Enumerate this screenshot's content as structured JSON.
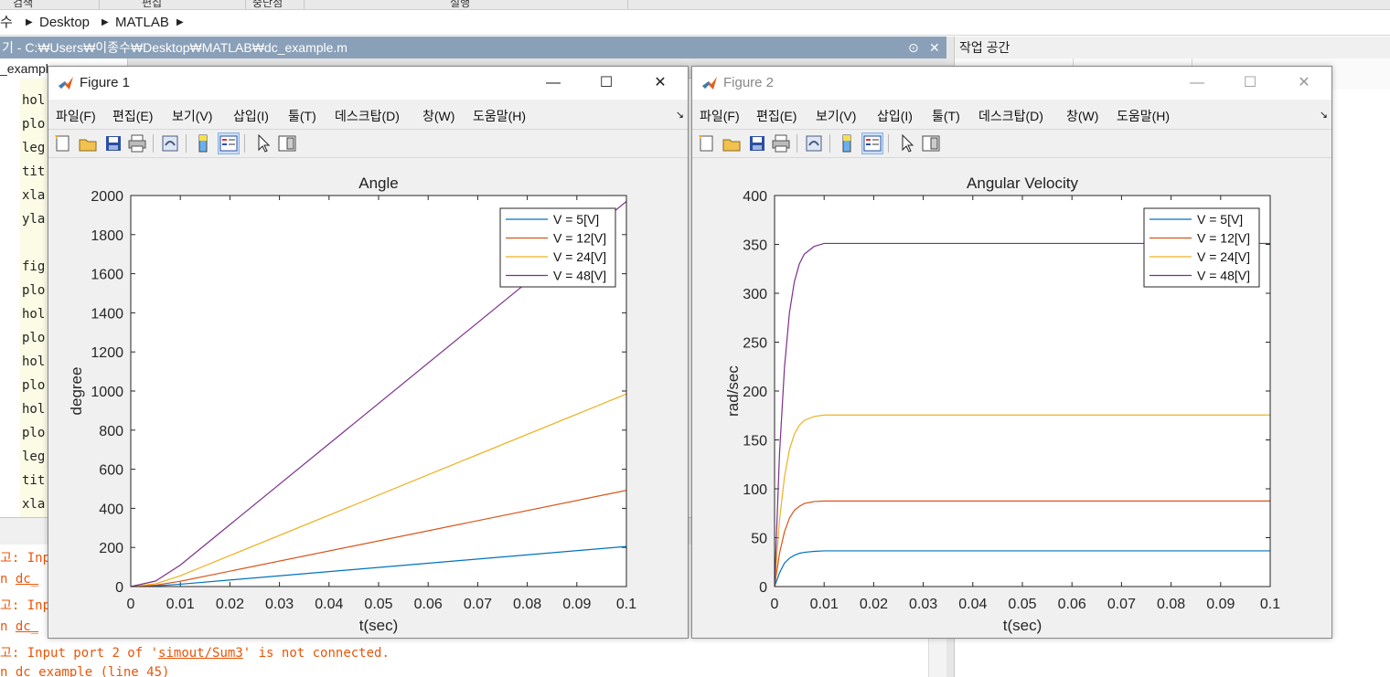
{
  "ribbon": {
    "items": [
      "검색",
      "편집",
      "중단점",
      "실행"
    ]
  },
  "address": {
    "segments": [
      "수",
      "Desktop",
      "MATLAB"
    ]
  },
  "editor": {
    "title": "기 - C:₩Users₩이종수₩Desktop₩MATLAB₩dc_example.m",
    "tab": "_exampl",
    "lines": [
      "hol",
      "plo",
      "leg",
      "tit",
      "xla",
      "yla",
      "",
      "fig",
      "plo",
      "hol",
      "plo",
      "hol",
      "plo",
      "hol",
      "plo",
      "leg",
      "tit",
      "xla"
    ]
  },
  "command": {
    "lines": [
      {
        "pre": "고: Inp",
        "link": "",
        "post": ""
      },
      {
        "pre": "n ",
        "link": "dc_",
        "post": ""
      },
      {
        "pre": "고: Inp",
        "link": "",
        "post": ""
      },
      {
        "pre": "n ",
        "link": "dc_",
        "post": ""
      },
      {
        "pre": "고: Input port 2 of '",
        "link": "simout/Sum3",
        "post": "' is not connected."
      },
      {
        "pre": "n ",
        "link": "dc_example",
        "post": " (line 45)"
      }
    ]
  },
  "workspace": {
    "title": "작업 공간"
  },
  "figures": [
    {
      "title": "Figure 1",
      "active": true,
      "menus": [
        "파일(F)",
        "편집(E)",
        "보기(V)",
        "삽입(I)",
        "툴(T)",
        "데스크탑(D)",
        "창(W)",
        "도움말(H)"
      ],
      "window_buttons": {
        "min": "—",
        "max": "☐",
        "close": "✕"
      }
    },
    {
      "title": "Figure 2",
      "active": false,
      "menus": [
        "파일(F)",
        "편집(E)",
        "보기(V)",
        "삽입(I)",
        "툴(T)",
        "데스크탑(D)",
        "창(W)",
        "도움말(H)"
      ],
      "window_buttons": {
        "min": "—",
        "max": "☐",
        "close": "✕"
      }
    }
  ],
  "toolbar_icons": [
    "new-figure-icon",
    "open-file-icon",
    "save-icon",
    "print-icon",
    "link-icon",
    "colorbar-icon",
    "legend-icon",
    "pointer-icon",
    "property-editor-icon"
  ],
  "colors": {
    "v5": "#0072BD",
    "v12": "#D95319",
    "v24": "#EDB120",
    "v48": "#7E2F8E"
  },
  "chart_data": [
    {
      "type": "line",
      "title": "Angle",
      "xlabel": "t(sec)",
      "ylabel": "degree",
      "xlim": [
        0,
        0.1
      ],
      "ylim": [
        0,
        2000
      ],
      "xticks": [
        0,
        0.01,
        0.02,
        0.03,
        0.04,
        0.05,
        0.06,
        0.07,
        0.08,
        0.09,
        0.1
      ],
      "yticks": [
        0,
        200,
        400,
        600,
        800,
        1000,
        1200,
        1400,
        1600,
        1800,
        2000
      ],
      "legend_position": "top-right",
      "series": [
        {
          "name": "V = 5[V]",
          "x": [
            0,
            0.005,
            0.01,
            0.1
          ],
          "y": [
            0,
            3,
            12,
            205
          ]
        },
        {
          "name": "V = 12[V]",
          "x": [
            0,
            0.005,
            0.01,
            0.1
          ],
          "y": [
            0,
            7,
            27,
            492
          ]
        },
        {
          "name": "V = 24[V]",
          "x": [
            0,
            0.005,
            0.01,
            0.1
          ],
          "y": [
            0,
            14,
            55,
            985
          ]
        },
        {
          "name": "V = 48[V]",
          "x": [
            0,
            0.005,
            0.01,
            0.1
          ],
          "y": [
            0,
            28,
            110,
            1970
          ]
        }
      ]
    },
    {
      "type": "line",
      "title": "Angular Velocity",
      "xlabel": "t(sec)",
      "ylabel": "rad/sec",
      "xlim": [
        0,
        0.1
      ],
      "ylim": [
        0,
        400
      ],
      "xticks": [
        0,
        0.01,
        0.02,
        0.03,
        0.04,
        0.05,
        0.06,
        0.07,
        0.08,
        0.09,
        0.1
      ],
      "yticks": [
        0,
        50,
        100,
        150,
        200,
        250,
        300,
        350,
        400
      ],
      "legend_position": "top-right",
      "series": [
        {
          "name": "V = 5[V]",
          "x": [
            0,
            0.001,
            0.002,
            0.003,
            0.004,
            0.005,
            0.006,
            0.008,
            0.01,
            0.1
          ],
          "y": [
            0,
            14,
            24,
            29,
            32,
            34,
            35,
            36,
            36.5,
            36.5
          ]
        },
        {
          "name": "V = 12[V]",
          "x": [
            0,
            0.001,
            0.002,
            0.003,
            0.004,
            0.005,
            0.006,
            0.008,
            0.01,
            0.1
          ],
          "y": [
            0,
            34,
            56,
            70,
            78,
            82,
            85,
            87,
            87.5,
            87.5
          ]
        },
        {
          "name": "V = 24[V]",
          "x": [
            0,
            0.001,
            0.002,
            0.003,
            0.004,
            0.005,
            0.006,
            0.008,
            0.01,
            0.1
          ],
          "y": [
            0,
            68,
            112,
            140,
            156,
            165,
            170,
            174,
            175.5,
            175.5
          ]
        },
        {
          "name": "V = 48[V]",
          "x": [
            0,
            0.001,
            0.002,
            0.003,
            0.004,
            0.005,
            0.006,
            0.008,
            0.01,
            0.1
          ],
          "y": [
            0,
            136,
            224,
            280,
            312,
            330,
            340,
            348,
            351,
            351
          ]
        }
      ]
    }
  ]
}
